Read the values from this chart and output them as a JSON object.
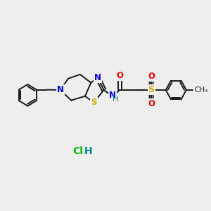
{
  "fig_bg": "#eeeeee",
  "bond_color": "#1a1a1a",
  "bond_width": 1.4,
  "atom_colors": {
    "N": "#0000ee",
    "S": "#ccaa00",
    "O": "#ee0000",
    "Cl": "#00bb00",
    "H": "#008888",
    "C": "#1a1a1a"
  },
  "font_size": 8.5
}
